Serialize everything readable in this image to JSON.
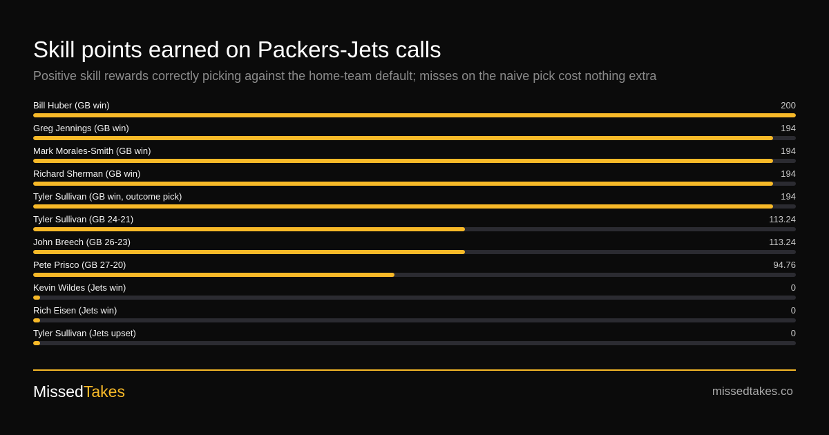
{
  "header": {
    "title": "Skill points earned on Packers-Jets calls",
    "subtitle": "Positive skill rewards correctly picking against the home-team default; misses on the naive pick cost nothing extra"
  },
  "colors": {
    "accent": "#f7b928",
    "track": "#2b2b31",
    "background": "#0b0b0b"
  },
  "chart_data": {
    "type": "bar",
    "orientation": "horizontal",
    "title": "Skill points earned on Packers-Jets calls",
    "subtitle": "Positive skill rewards correctly picking against the home-team default; misses on the naive pick cost nothing extra",
    "xlim": [
      0,
      200
    ],
    "categories": [
      "Bill Huber (GB win)",
      "Greg Jennings (GB win)",
      "Mark Morales-Smith (GB win)",
      "Richard Sherman (GB win)",
      "Tyler Sullivan (GB win, outcome pick)",
      "Tyler Sullivan (GB 24-21)",
      "John Breech (GB 26-23)",
      "Pete Prisco (GB 27-20)",
      "Kevin Wildes (Jets win)",
      "Rich Eisen (Jets win)",
      "Tyler Sullivan (Jets upset)"
    ],
    "values": [
      200,
      194,
      194,
      194,
      194,
      113.24,
      113.24,
      94.76,
      0,
      0,
      0
    ],
    "value_labels": [
      "200",
      "194",
      "194",
      "194",
      "194",
      "113.24",
      "113.24",
      "94.76",
      "0",
      "0",
      "0"
    ]
  },
  "footer": {
    "brand_part1": "Missed",
    "brand_part2": "Takes",
    "site": "missedtakes.co"
  }
}
